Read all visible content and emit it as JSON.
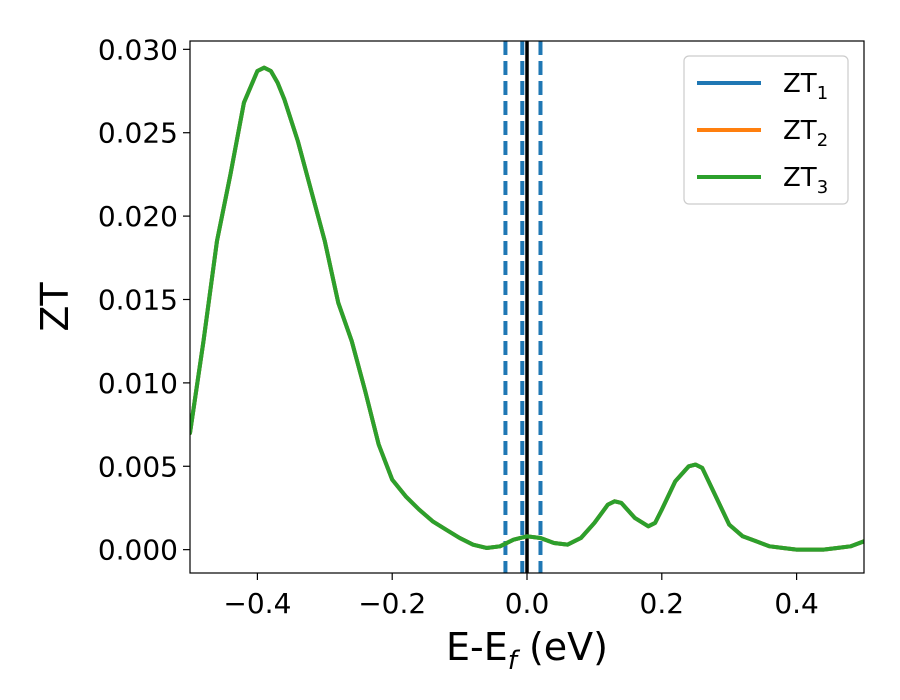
{
  "chart_data": {
    "type": "line",
    "xlabel_main": "E-E",
    "xlabel_sub": "f",
    "xlabel_rest": " (eV)",
    "ylabel": "ZT",
    "xlim": [
      -0.5,
      0.5
    ],
    "ylim": [
      -0.0014,
      0.0305
    ],
    "grid": false,
    "legend_position": "top-right",
    "x_ticks": [
      {
        "value": -0.4,
        "label": "−0.4"
      },
      {
        "value": -0.2,
        "label": "−0.2"
      },
      {
        "value": 0.0,
        "label": "0.0"
      },
      {
        "value": 0.2,
        "label": "0.2"
      },
      {
        "value": 0.4,
        "label": "0.4"
      }
    ],
    "y_ticks": [
      {
        "value": 0.0,
        "label": "0.000"
      },
      {
        "value": 0.005,
        "label": "0.005"
      },
      {
        "value": 0.01,
        "label": "0.010"
      },
      {
        "value": 0.015,
        "label": "0.015"
      },
      {
        "value": 0.02,
        "label": "0.020"
      },
      {
        "value": 0.025,
        "label": "0.025"
      },
      {
        "value": 0.03,
        "label": "0.030"
      }
    ],
    "vertical_lines": [
      {
        "x": -0.032,
        "color": "#1f77b4",
        "style": "dashed"
      },
      {
        "x": -0.007,
        "color": "#1f77b4",
        "style": "dashed"
      },
      {
        "x": 0.02,
        "color": "#1f77b4",
        "style": "dashed"
      },
      {
        "x": 0.0,
        "color": "#000000",
        "style": "solid"
      }
    ],
    "series": [
      {
        "name_main": "ZT",
        "name_sub": "1",
        "color": "#1f77b4",
        "x": [
          -0.5,
          -0.48,
          -0.46,
          -0.44,
          -0.42,
          -0.4,
          -0.39,
          -0.38,
          -0.37,
          -0.36,
          -0.34,
          -0.32,
          -0.3,
          -0.28,
          -0.26,
          -0.24,
          -0.22,
          -0.2,
          -0.18,
          -0.16,
          -0.14,
          -0.12,
          -0.1,
          -0.08,
          -0.06,
          -0.04,
          -0.02,
          0.0,
          0.02,
          0.04,
          0.06,
          0.08,
          0.1,
          0.12,
          0.13,
          0.14,
          0.16,
          0.18,
          0.19,
          0.2,
          0.22,
          0.24,
          0.25,
          0.26,
          0.28,
          0.3,
          0.32,
          0.34,
          0.36,
          0.38,
          0.4,
          0.42,
          0.44,
          0.46,
          0.48,
          0.5
        ],
        "y": [
          0.007,
          0.0125,
          0.0185,
          0.0225,
          0.0268,
          0.0287,
          0.0289,
          0.0287,
          0.028,
          0.027,
          0.0245,
          0.0215,
          0.0185,
          0.0148,
          0.0125,
          0.0095,
          0.0063,
          0.0042,
          0.0032,
          0.0024,
          0.0017,
          0.0012,
          0.0007,
          0.0003,
          0.0001,
          0.0002,
          0.0006,
          0.0008,
          0.0007,
          0.0004,
          0.0003,
          0.0007,
          0.0016,
          0.0027,
          0.0029,
          0.0028,
          0.0019,
          0.0014,
          0.0016,
          0.0024,
          0.0041,
          0.005,
          0.0051,
          0.0049,
          0.0032,
          0.0015,
          0.0008,
          0.0005,
          0.0002,
          0.0001,
          0.0,
          0.0,
          0.0,
          0.0001,
          0.0002,
          0.0005
        ]
      },
      {
        "name_main": "ZT",
        "name_sub": "2",
        "color": "#ff7f0e",
        "x": [
          -0.5,
          -0.48,
          -0.46,
          -0.44,
          -0.42,
          -0.4,
          -0.39,
          -0.38,
          -0.37,
          -0.36,
          -0.34,
          -0.32,
          -0.3,
          -0.28,
          -0.26,
          -0.24,
          -0.22,
          -0.2,
          -0.18,
          -0.16,
          -0.14,
          -0.12,
          -0.1,
          -0.08,
          -0.06,
          -0.04,
          -0.02,
          0.0,
          0.02,
          0.04,
          0.06,
          0.08,
          0.1,
          0.12,
          0.13,
          0.14,
          0.16,
          0.18,
          0.19,
          0.2,
          0.22,
          0.24,
          0.25,
          0.26,
          0.28,
          0.3,
          0.32,
          0.34,
          0.36,
          0.38,
          0.4,
          0.42,
          0.44,
          0.46,
          0.48,
          0.5
        ],
        "y": [
          0.007,
          0.0125,
          0.0185,
          0.0225,
          0.0268,
          0.0287,
          0.0289,
          0.0287,
          0.028,
          0.027,
          0.0245,
          0.0215,
          0.0185,
          0.0148,
          0.0125,
          0.0095,
          0.0063,
          0.0042,
          0.0032,
          0.0024,
          0.0017,
          0.0012,
          0.0007,
          0.0003,
          0.0001,
          0.0002,
          0.0006,
          0.0008,
          0.0007,
          0.0004,
          0.0003,
          0.0007,
          0.0016,
          0.0027,
          0.0029,
          0.0028,
          0.0019,
          0.0014,
          0.0016,
          0.0024,
          0.0041,
          0.005,
          0.0051,
          0.0049,
          0.0032,
          0.0015,
          0.0008,
          0.0005,
          0.0002,
          0.0001,
          0.0,
          0.0,
          0.0,
          0.0001,
          0.0002,
          0.0005
        ]
      },
      {
        "name_main": "ZT",
        "name_sub": "3",
        "color": "#2ca02c",
        "x": [
          -0.5,
          -0.48,
          -0.46,
          -0.44,
          -0.42,
          -0.4,
          -0.39,
          -0.38,
          -0.37,
          -0.36,
          -0.34,
          -0.32,
          -0.3,
          -0.28,
          -0.26,
          -0.24,
          -0.22,
          -0.2,
          -0.18,
          -0.16,
          -0.14,
          -0.12,
          -0.1,
          -0.08,
          -0.06,
          -0.04,
          -0.02,
          0.0,
          0.02,
          0.04,
          0.06,
          0.08,
          0.1,
          0.12,
          0.13,
          0.14,
          0.16,
          0.18,
          0.19,
          0.2,
          0.22,
          0.24,
          0.25,
          0.26,
          0.28,
          0.3,
          0.32,
          0.34,
          0.36,
          0.38,
          0.4,
          0.42,
          0.44,
          0.46,
          0.48,
          0.5
        ],
        "y": [
          0.007,
          0.0125,
          0.0185,
          0.0225,
          0.0268,
          0.0287,
          0.0289,
          0.0287,
          0.028,
          0.027,
          0.0245,
          0.0215,
          0.0185,
          0.0148,
          0.0125,
          0.0095,
          0.0063,
          0.0042,
          0.0032,
          0.0024,
          0.0017,
          0.0012,
          0.0007,
          0.0003,
          0.0001,
          0.0002,
          0.0006,
          0.0008,
          0.0007,
          0.0004,
          0.0003,
          0.0007,
          0.0016,
          0.0027,
          0.0029,
          0.0028,
          0.0019,
          0.0014,
          0.0016,
          0.0024,
          0.0041,
          0.005,
          0.0051,
          0.0049,
          0.0032,
          0.0015,
          0.0008,
          0.0005,
          0.0002,
          0.0001,
          0.0,
          0.0,
          0.0,
          0.0001,
          0.0002,
          0.0005
        ]
      }
    ]
  }
}
